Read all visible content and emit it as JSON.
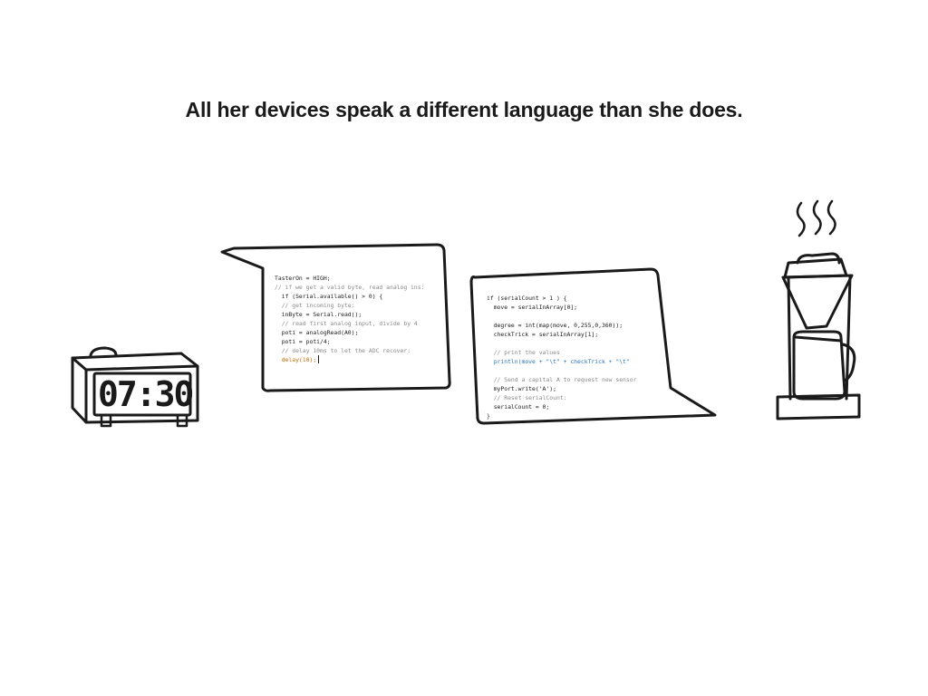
{
  "caption": "All her devices speak a different language than she does.",
  "clock": {
    "time": "07:30"
  },
  "bubble_left": {
    "lines": [
      "TasterOn = HIGH;",
      "// if we get a valid byte, read analog ins:",
      "  if (Serial.available() > 0) {",
      "  // get incoming byte:",
      "  inByte = Serial.read();",
      "  // read first analog input, divide by 4",
      "  poti = analogRead(A0);",
      "  poti = poti/4;",
      "  // delay 10ms to let the ADC recover:",
      "  delay(10);"
    ]
  },
  "bubble_right": {
    "lines": [
      "if (serialCount > 1 ) {",
      "  move = serialInArray[0];",
      "",
      "  degree = int(map(move, 0,255,0,360));",
      "  checkTrick = serialInArray[1];",
      "",
      "  // print the values",
      "  println(move + \"\\t\" + checkTrick + \"\\t\"",
      "",
      "  // Send a capital A to request new sensor",
      "  myPort.write('A');",
      "  // Reset serialCount:",
      "  serialCount = 0;",
      "}"
    ]
  },
  "icons": {
    "clock": "alarm-clock-icon",
    "coffee": "coffee-machine-icon",
    "steam": "steam-icon"
  },
  "colors": {
    "ink": "#1a1a1a",
    "comment": "#8a8a8a",
    "keyword_orange": "#cc6a00",
    "keyword_blue": "#2a74b8"
  }
}
